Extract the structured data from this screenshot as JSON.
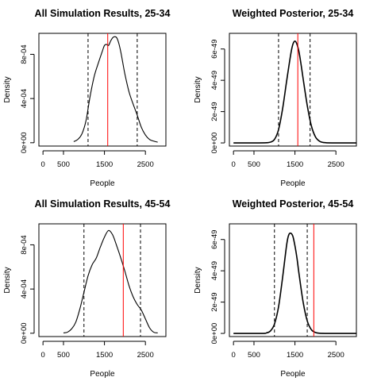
{
  "chart_data": [
    {
      "type": "line",
      "title": "All Simulation Results, 25-34",
      "xlabel": "People",
      "ylabel": "Density",
      "xlim": [
        -100,
        3000
      ],
      "ylim": [
        -3e-05,
        0.00099
      ],
      "x_ticks": [
        0,
        500,
        1500,
        2500
      ],
      "y_ticks": [
        0,
        0.0004,
        0.0008
      ],
      "y_tick_labels": [
        "0e+00",
        "4e-04",
        "8e-04"
      ],
      "series": [
        {
          "color": "#000000",
          "x": [
            750,
            850,
            950,
            1050,
            1150,
            1250,
            1350,
            1450,
            1500,
            1550,
            1600,
            1650,
            1700,
            1750,
            1800,
            1850,
            1900,
            1950,
            2000,
            2100,
            2200,
            2300,
            2400,
            2500,
            2600,
            2700,
            2800
          ],
          "y": [
            1e-05,
            3e-05,
            8e-05,
            0.0002,
            0.00042,
            0.0006,
            0.00072,
            0.00083,
            0.00088,
            0.00089,
            0.00088,
            0.00092,
            0.00095,
            0.00096,
            0.00095,
            0.0009,
            0.00082,
            0.00072,
            0.00062,
            0.00046,
            0.00035,
            0.00025,
            0.00014,
            7e-05,
            3e-05,
            1.5e-05,
            5e-06
          ]
        }
      ],
      "vlines": [
        {
          "x": 1100,
          "style": "dashed",
          "color": "#000000"
        },
        {
          "x": 2300,
          "style": "dashed",
          "color": "#000000"
        },
        {
          "x": 1580,
          "style": "solid",
          "color": "#ff0000"
        }
      ]
    },
    {
      "type": "line",
      "title": "Weighted Posterior, 25-34",
      "xlabel": "People",
      "ylabel": "Density",
      "xlim": [
        -100,
        3000
      ],
      "ylim": [
        -2e-50,
        7e-49
      ],
      "x_ticks": [
        0,
        500,
        1500,
        2500
      ],
      "y_ticks": [
        0,
        2e-49,
        4e-49,
        6e-49
      ],
      "y_tick_labels": [
        "0e+00",
        "2e-49",
        "4e-49",
        "6e-49"
      ],
      "series": [
        {
          "color": "#000000",
          "x": [
            0,
            600,
            800,
            900,
            1000,
            1100,
            1200,
            1300,
            1400,
            1450,
            1500,
            1550,
            1600,
            1650,
            1700,
            1800,
            1900,
            2000,
            2100,
            2200,
            2400,
            3000
          ],
          "y": [
            0,
            0,
            1e-51,
            5e-51,
            2.2e-50,
            8.5e-50,
            2.2e-49,
            4e-49,
            5.7e-49,
            6.3e-49,
            6.5e-49,
            6.3e-49,
            5.8e-49,
            5e-49,
            4.1e-49,
            2.4e-49,
            1.1e-49,
            3.9e-50,
            1.1e-50,
            2.5e-51,
            0,
            0
          ]
        }
      ],
      "vlines": [
        {
          "x": 1100,
          "style": "dashed",
          "color": "#000000"
        },
        {
          "x": 1870,
          "style": "dashed",
          "color": "#000000"
        },
        {
          "x": 1570,
          "style": "solid",
          "color": "#ff0000"
        }
      ]
    },
    {
      "type": "line",
      "title": "All Simulation Results, 45-54",
      "xlabel": "People",
      "ylabel": "Density",
      "xlim": [
        -100,
        3000
      ],
      "ylim": [
        -3e-05,
        0.00099
      ],
      "x_ticks": [
        0,
        500,
        1500,
        2500
      ],
      "y_ticks": [
        0,
        0.0004,
        0.0008
      ],
      "y_tick_labels": [
        "0e+00",
        "4e-04",
        "8e-04"
      ],
      "series": [
        {
          "color": "#000000",
          "x": [
            500,
            600,
            700,
            800,
            900,
            1000,
            1100,
            1200,
            1300,
            1400,
            1500,
            1600,
            1700,
            1800,
            1900,
            2000,
            2100,
            2200,
            2300,
            2400,
            2500,
            2600,
            2700,
            2800
          ],
          "y": [
            3e-06,
            1e-05,
            4e-05,
            0.0001,
            0.00022,
            0.00037,
            0.00052,
            0.00062,
            0.00068,
            0.00078,
            0.00087,
            0.00093,
            0.00089,
            0.00079,
            0.00068,
            0.00056,
            0.00043,
            0.00033,
            0.00026,
            0.00021,
            0.00013,
            5e-05,
            1e-05,
            3e-06
          ]
        }
      ],
      "vlines": [
        {
          "x": 1000,
          "style": "dashed",
          "color": "#000000"
        },
        {
          "x": 2380,
          "style": "dashed",
          "color": "#000000"
        },
        {
          "x": 1960,
          "style": "solid",
          "color": "#ff0000"
        }
      ]
    },
    {
      "type": "line",
      "title": "Weighted Posterior, 45-54",
      "xlabel": "People",
      "ylabel": "Density",
      "xlim": [
        -100,
        3000
      ],
      "ylim": [
        -2e-50,
        7e-49
      ],
      "x_ticks": [
        0,
        500,
        1500,
        2500
      ],
      "y_ticks": [
        0,
        2e-49,
        4e-49,
        6e-49
      ],
      "y_tick_labels": [
        "0e+00",
        "2e-49",
        "4e-49",
        "6e-49"
      ],
      "series": [
        {
          "color": "#000000",
          "x": [
            0,
            700,
            800,
            900,
            1000,
            1100,
            1200,
            1300,
            1350,
            1400,
            1450,
            1500,
            1550,
            1600,
            1700,
            1800,
            1900,
            2000,
            2100,
            2300,
            3000
          ],
          "y": [
            0,
            0,
            3e-51,
            1.5e-50,
            6e-50,
            1.7e-49,
            3.6e-49,
            5.7e-49,
            6.3e-49,
            6.4e-49,
            6.2e-49,
            5.6e-49,
            4.8e-49,
            3.8e-49,
            2e-49,
            8e-50,
            2.4e-50,
            6e-51,
            1e-51,
            0,
            0
          ]
        }
      ],
      "vlines": [
        {
          "x": 1000,
          "style": "dashed",
          "color": "#000000"
        },
        {
          "x": 1800,
          "style": "dashed",
          "color": "#000000"
        },
        {
          "x": 1960,
          "style": "solid",
          "color": "#ff0000"
        }
      ]
    }
  ]
}
